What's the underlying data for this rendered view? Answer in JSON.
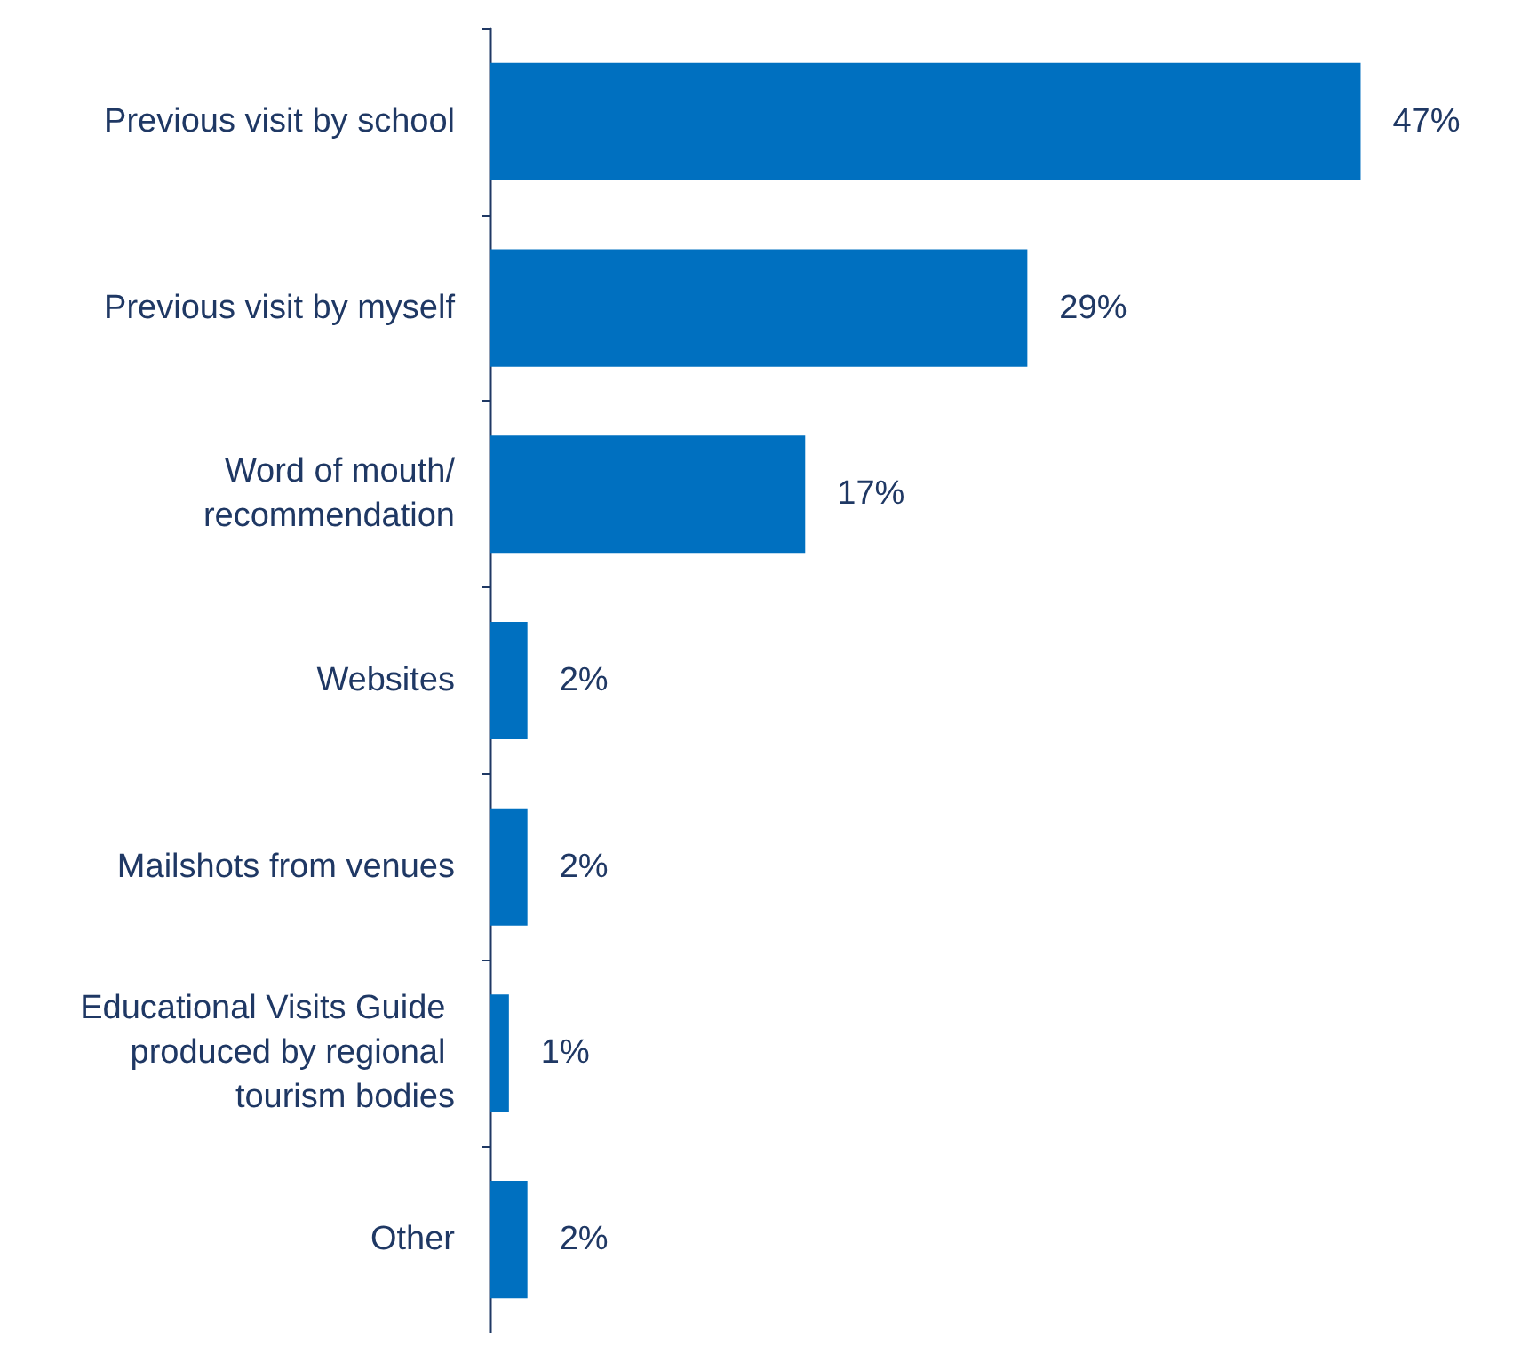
{
  "chart_data": {
    "type": "bar",
    "orientation": "horizontal",
    "categories": [
      "Previous visit by school",
      "Previous visit by myself",
      "Word of mouth/recommendation",
      "Websites",
      "Mailshots from venues",
      "Educational Visits Guide produced by regional tourism bodies",
      "Other"
    ],
    "values": [
      47,
      29,
      17,
      2,
      2,
      1,
      2
    ],
    "value_labels": [
      "47%",
      "29%",
      "17%",
      "2%",
      "2%",
      "1%",
      "2%"
    ],
    "color": "#0070c0"
  }
}
